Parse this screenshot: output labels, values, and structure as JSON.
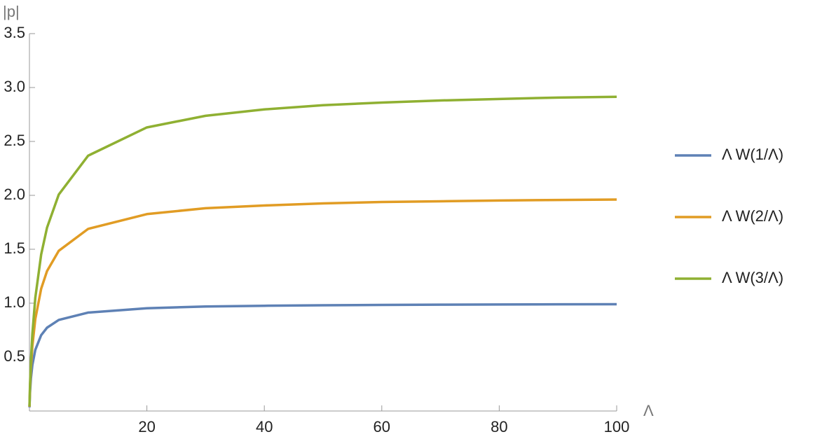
{
  "chart_data": {
    "type": "line",
    "x_label": "Λ",
    "y_label": "|p|",
    "x": [
      0.01,
      0.1,
      0.25,
      0.5,
      1,
      2,
      3,
      5,
      10,
      20,
      30,
      40,
      50,
      60,
      70,
      80,
      90,
      100
    ],
    "series": [
      {
        "name": "Λ W(1/Λ)",
        "color": "#5e81b5",
        "values": [
          0.0339,
          0.1746,
          0.3006,
          0.4263,
          0.5671,
          0.7035,
          0.7727,
          0.8445,
          0.9128,
          0.9531,
          0.969,
          0.9759,
          0.9805,
          0.9836,
          0.986,
          0.9877,
          0.9891,
          0.9901
        ]
      },
      {
        "name": "Λ W(2/Λ)",
        "color": "#e19c24",
        "values": [
          0.0393,
          0.2205,
          0.4015,
          0.6011,
          0.8526,
          1.1343,
          1.298,
          1.486,
          1.689,
          1.826,
          1.881,
          1.906,
          1.925,
          1.938,
          1.945,
          1.952,
          1.957,
          1.961
        ]
      },
      {
        "name": "Λ W(3/Λ)",
        "color": "#8fb032",
        "values": [
          0.0426,
          0.249,
          0.466,
          0.716,
          1.05,
          1.452,
          1.701,
          2.008,
          2.368,
          2.63,
          2.738,
          2.797,
          2.836,
          2.86,
          2.88,
          2.894,
          2.907,
          2.914
        ]
      }
    ],
    "xlim": [
      0,
      100
    ],
    "ylim": [
      0,
      3.5
    ],
    "xticks": [
      20,
      40,
      60,
      80,
      100
    ],
    "yticks": [
      0.5,
      {
        "value": 1,
        "label": "1.0"
      },
      1.5,
      {
        "value": 2,
        "label": "2.0"
      },
      2.5,
      {
        "value": 3,
        "label": "3.0"
      },
      3.5
    ],
    "legend": "right"
  }
}
